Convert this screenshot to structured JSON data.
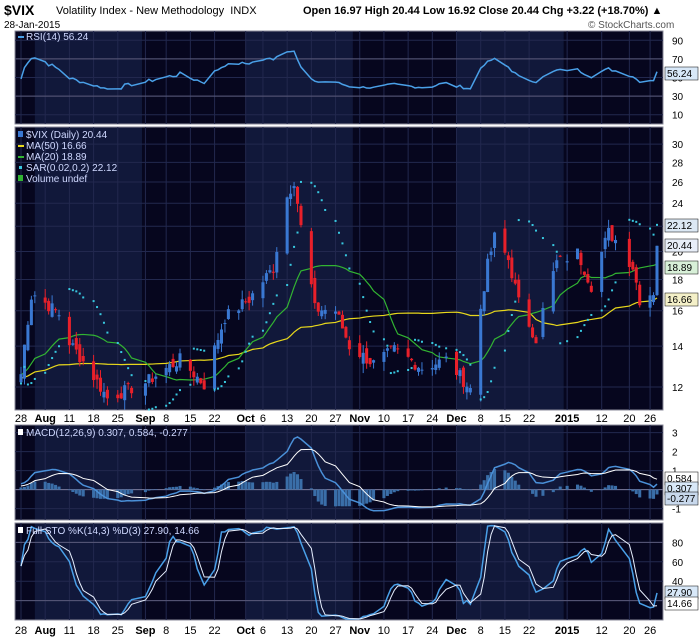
{
  "header": {
    "symbol": "$VIX",
    "name": "Volatility Index - New Methodology",
    "exchange": "INDX",
    "date": "28-Jan-2015",
    "quote": "Open 16.97  High 20.44  Low 16.92  Close 20.44  Chg +3.22 (+18.70%) ▲",
    "watermark": "© StockCharts.com"
  },
  "colors": {
    "background": "#06061e",
    "band": "#11183a",
    "grid": "#22284e",
    "up_candle": "#3a78d2",
    "down_candle": "#e8202a",
    "ma50": "#e8d81c",
    "ma20": "#32b432",
    "sar": "#38c8e0",
    "rsi": "#4aa0e8",
    "macd": "#4a90d8",
    "signal": "#ffffff",
    "histogram": "#3a6ea8"
  },
  "x_axis": {
    "tick_labels": [
      "28",
      "Aug",
      "11",
      "18",
      "25",
      "Sep",
      "8",
      "15",
      "22",
      "Oct",
      "6",
      "13",
      "20",
      "27",
      "Nov",
      "10",
      "17",
      "24",
      "Dec",
      "8",
      "15",
      "22",
      "2015",
      "12",
      "20",
      "26"
    ]
  },
  "rsi_panel": {
    "legend": "RSI(14) 56.24",
    "last_value": 56.24,
    "y_ticks": [
      "90",
      "70",
      "50",
      "30",
      "10"
    ]
  },
  "price_panel": {
    "legend": {
      "series": "$VIX (Daily) 20.44",
      "ma50": "MA(50) 16.66",
      "ma20": "MA(20) 18.89",
      "sar": "SAR(0.02,0.2) 22.12",
      "volume": "Volume undef"
    },
    "y_ticks": [
      "30",
      "28",
      "26",
      "24",
      "22",
      "20",
      "18",
      "16",
      "14",
      "12"
    ],
    "last_labels": {
      "sar": "22.12",
      "close": "20.44",
      "ma20": "18.89",
      "ma50": "16.66"
    }
  },
  "macd_panel": {
    "legend": "MACD(12,26,9) 0.307, 0.584, -0.277",
    "y_ticks": [
      "3",
      "2",
      "1",
      "0",
      "-1"
    ],
    "last_labels": {
      "signal": "0.584",
      "macd": "0.307",
      "hist": "-0.277"
    }
  },
  "sto_panel": {
    "legend": "Full STO %K(14,3) %D(3) 27.90, 14.66",
    "y_ticks": [
      "80",
      "60",
      "40",
      "20"
    ],
    "last_labels": {
      "k": "27.90",
      "d": "14.66"
    }
  },
  "chart_data": {
    "type": "candlestick",
    "title": "$VIX Volatility Index - New Methodology",
    "x_start": "2014-07-28",
    "x_end": "2015-01-28",
    "price_keypoints": [
      {
        "date": "2014-07-28",
        "close": 12.6
      },
      {
        "date": "2014-07-31",
        "close": 16.9
      },
      {
        "date": "2014-08-01",
        "close": 17.0
      },
      {
        "date": "2014-08-08",
        "close": 15.8
      },
      {
        "date": "2014-08-11",
        "close": 14.2
      },
      {
        "date": "2014-08-22",
        "close": 11.5
      },
      {
        "date": "2014-09-02",
        "close": 12.2
      },
      {
        "date": "2014-09-12",
        "close": 13.3
      },
      {
        "date": "2014-09-19",
        "close": 12.1
      },
      {
        "date": "2014-09-25",
        "close": 15.6
      },
      {
        "date": "2014-10-02",
        "close": 16.7
      },
      {
        "date": "2014-10-09",
        "close": 18.8
      },
      {
        "date": "2014-10-13",
        "close": 24.6
      },
      {
        "date": "2014-10-15",
        "close": 26.2
      },
      {
        "date": "2014-10-17",
        "close": 21.9
      },
      {
        "date": "2014-10-21",
        "close": 16.1
      },
      {
        "date": "2014-10-27",
        "close": 16.0
      },
      {
        "date": "2014-10-31",
        "close": 14.0
      },
      {
        "date": "2014-11-07",
        "close": 13.1
      },
      {
        "date": "2014-11-13",
        "close": 13.8
      },
      {
        "date": "2014-11-21",
        "close": 12.9
      },
      {
        "date": "2014-11-28",
        "close": 13.3
      },
      {
        "date": "2014-12-05",
        "close": 11.9
      },
      {
        "date": "2014-12-10",
        "close": 19.0
      },
      {
        "date": "2014-12-12",
        "close": 21.1
      },
      {
        "date": "2014-12-16",
        "close": 19.4
      },
      {
        "date": "2014-12-19",
        "close": 16.5
      },
      {
        "date": "2014-12-24",
        "close": 14.4
      },
      {
        "date": "2014-12-30",
        "close": 19.2
      },
      {
        "date": "2015-01-05",
        "close": 19.9
      },
      {
        "date": "2015-01-09",
        "close": 17.6
      },
      {
        "date": "2015-01-14",
        "close": 21.5
      },
      {
        "date": "2015-01-16",
        "close": 20.9
      },
      {
        "date": "2015-01-21",
        "close": 18.9
      },
      {
        "date": "2015-01-23",
        "close": 16.7
      },
      {
        "date": "2015-01-27",
        "close": 17.2
      },
      {
        "date": "2015-01-28",
        "close": 20.44
      }
    ],
    "last": {
      "open": 16.97,
      "high": 20.44,
      "low": 16.92,
      "close": 20.44,
      "change": 3.22,
      "change_pct": 18.7
    },
    "rsi_last": 56.24,
    "ma50_last": 16.66,
    "ma20_last": 18.89,
    "sar_last": 22.12,
    "macd_last": {
      "macd": 0.307,
      "signal": 0.584,
      "histogram": -0.277
    },
    "sto_last": {
      "k": 27.9,
      "d": 14.66
    },
    "price_ylim": [
      11.0,
      32.0
    ],
    "price_ytick_values": [
      30,
      28,
      26,
      24,
      22,
      20,
      18,
      16,
      14,
      12
    ],
    "price_scale": "log",
    "rsi_ylim": [
      0,
      100
    ],
    "rsi_ytick_values": [
      90,
      70,
      50,
      30,
      10
    ],
    "macd_ylim": [
      -1.6,
      3.4
    ],
    "macd_ytick_values": [
      3,
      2,
      1,
      0,
      -1
    ],
    "sto_ylim": [
      0,
      100
    ],
    "sto_ytick_values": [
      80,
      60,
      40,
      20
    ],
    "x_tick_dates": [
      "2014-07-28",
      "2014-08-04",
      "2014-08-11",
      "2014-08-18",
      "2014-08-25",
      "2014-09-02",
      "2014-09-08",
      "2014-09-15",
      "2014-09-22",
      "2014-10-01",
      "2014-10-06",
      "2014-10-13",
      "2014-10-20",
      "2014-10-27",
      "2014-11-03",
      "2014-11-10",
      "2014-11-17",
      "2014-11-24",
      "2014-12-01",
      "2014-12-08",
      "2014-12-15",
      "2014-12-22",
      "2015-01-02",
      "2015-01-12",
      "2015-01-20",
      "2015-01-26"
    ],
    "month_band_starts": [
      "2014-08-01",
      "2014-10-01",
      "2014-12-01"
    ],
    "month_band_ends": [
      "2014-09-01",
      "2014-11-01",
      "2015-01-01"
    ],
    "grid": true
  }
}
